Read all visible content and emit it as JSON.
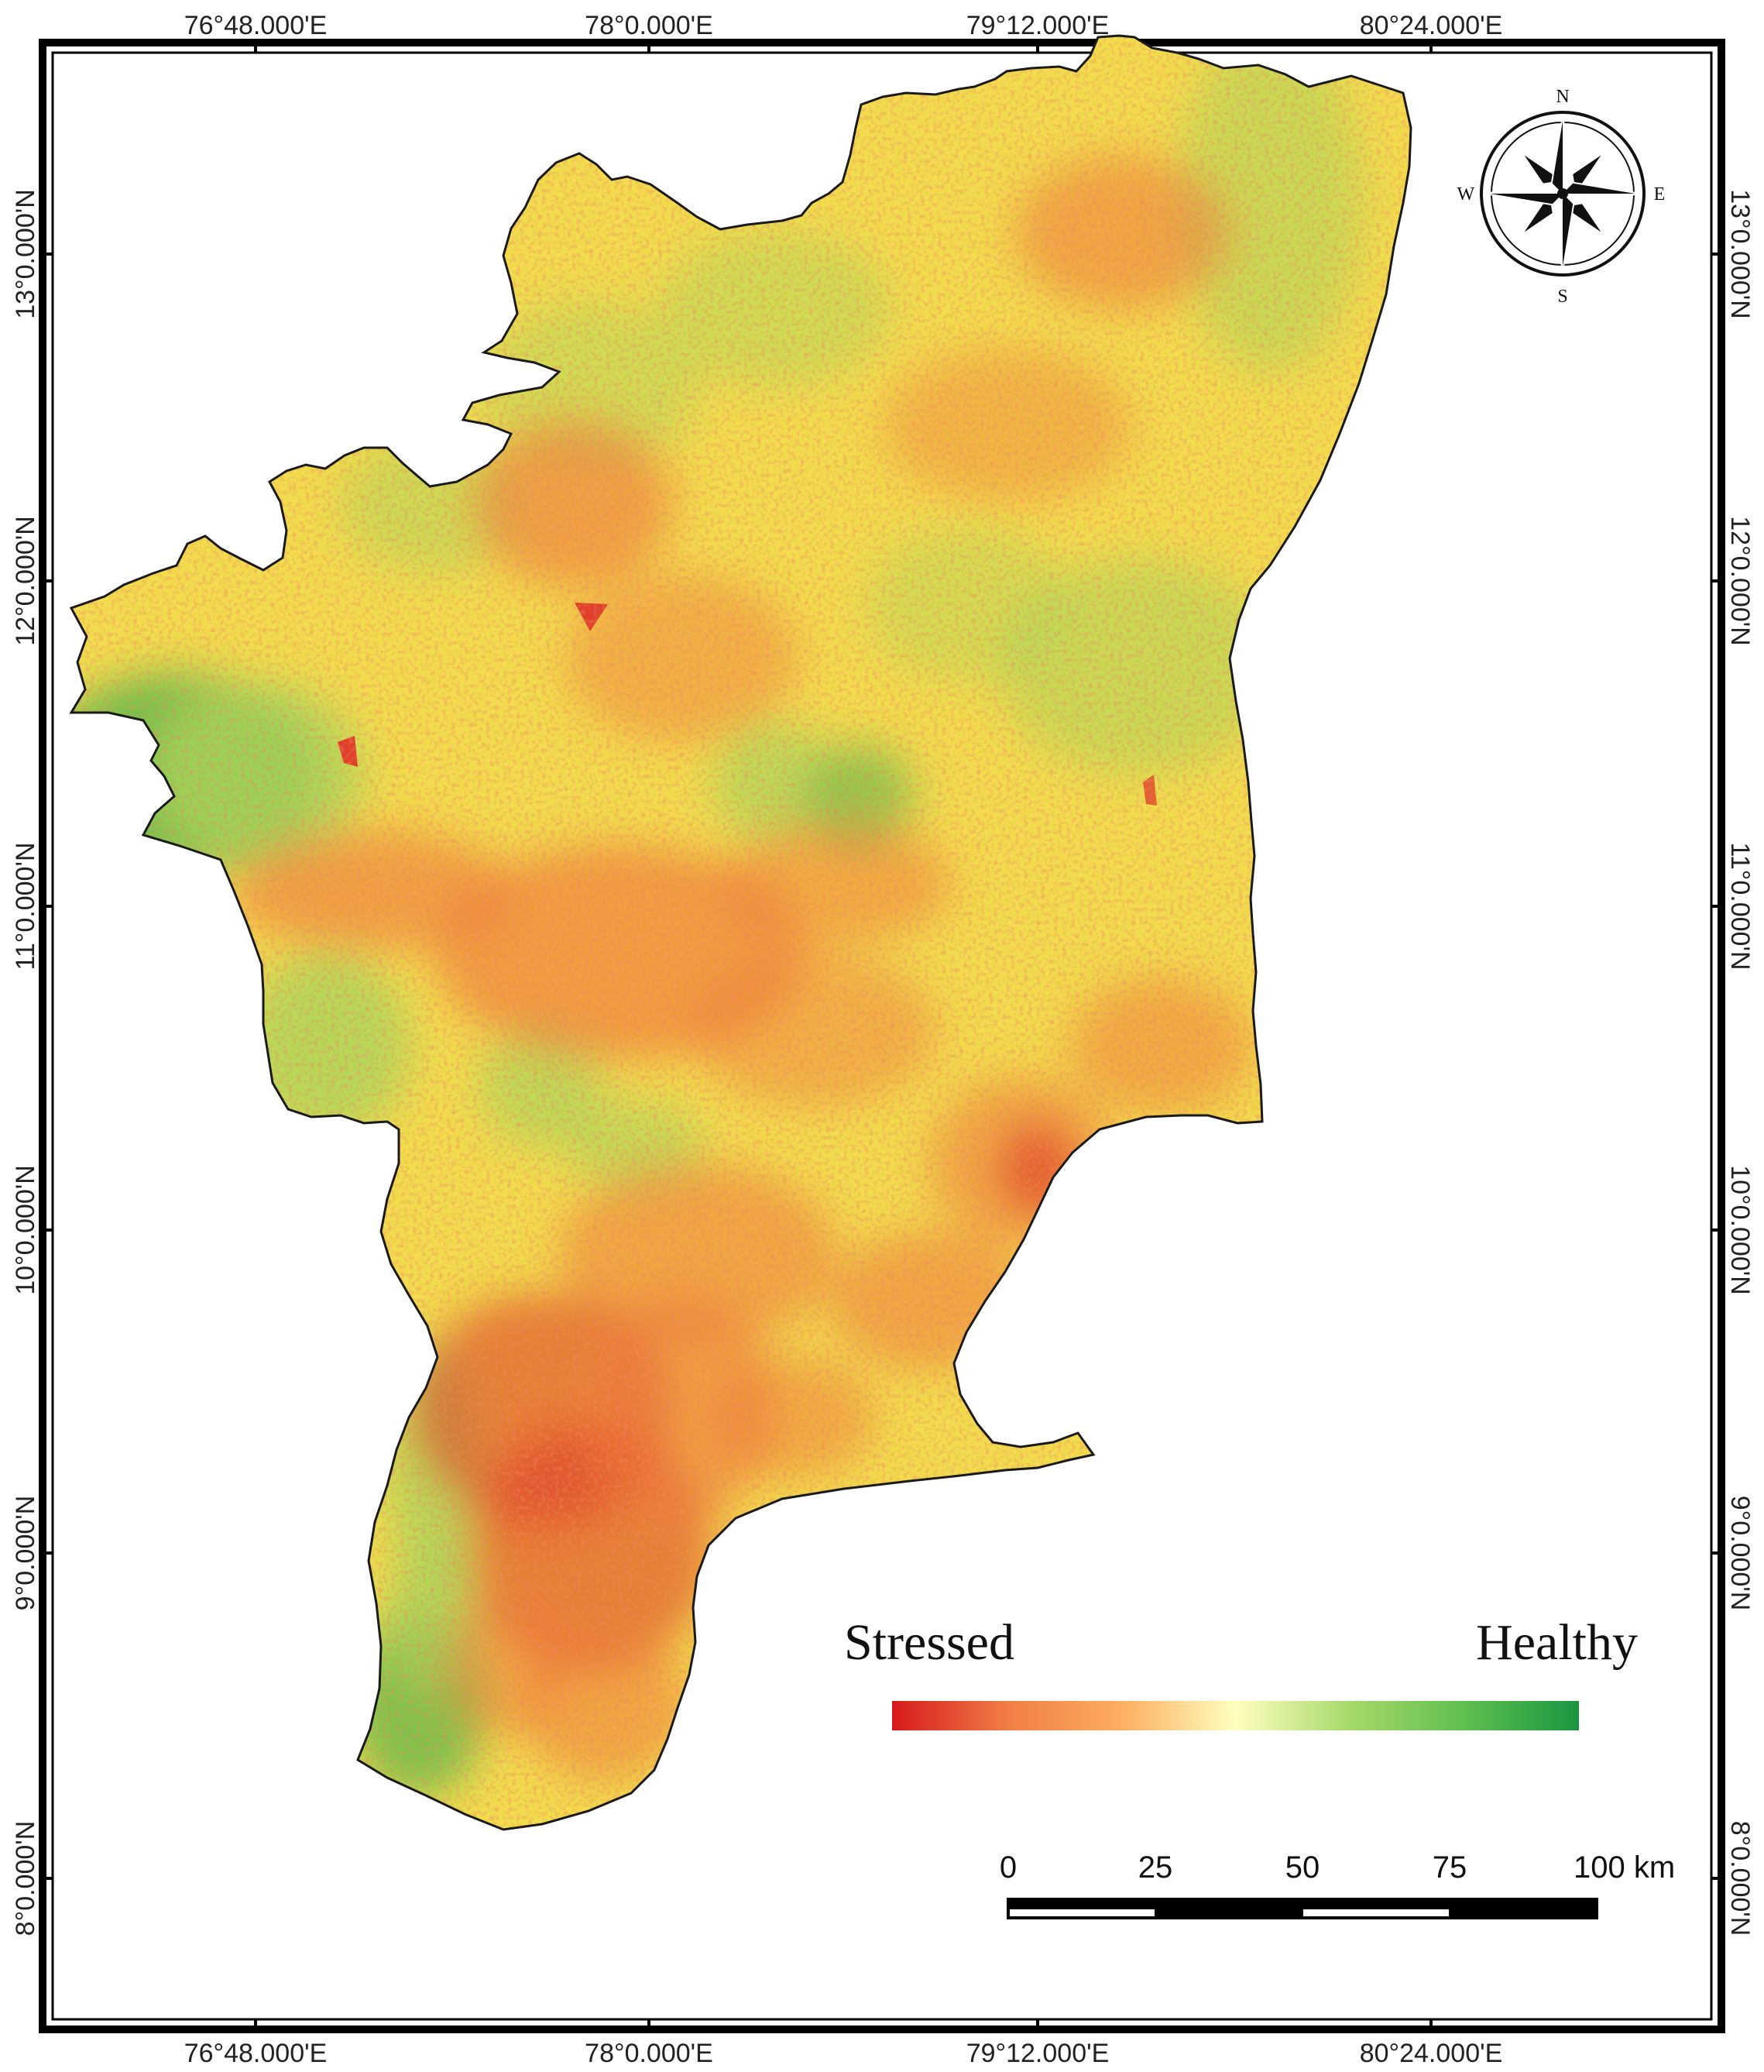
{
  "map": {
    "grid_lon_labels": [
      "76°48.000'E",
      "78°0.000'E",
      "79°12.000'E",
      "80°24.000'E"
    ],
    "grid_lat_labels": [
      "13°0.000'N",
      "12°0.000'N",
      "11°0.000'N",
      "10°0.000'N",
      "9°0.000'N",
      "8°0.000'N"
    ],
    "legend": {
      "low_label": "Stressed",
      "high_label": "Healthy",
      "colors": [
        "#d7191c",
        "#f07d45",
        "#fdae61",
        "#ffffbf",
        "#a6d96a",
        "#5fbf4f",
        "#1a9641"
      ]
    },
    "scale_bar": {
      "labels": [
        "0",
        "25",
        "50",
        "75",
        "100 km"
      ]
    },
    "north_arrow": {
      "letters": {
        "north": "N",
        "east": "E",
        "south": "S",
        "west": "W"
      }
    },
    "region_colors": {
      "base": "#f2dc4e",
      "stressed": "#ef7a3a",
      "very_stressed": "#e0402a",
      "healthy": "#a9d65a",
      "very_healthy": "#5cb84a",
      "outline": "#1a1a1a"
    }
  }
}
